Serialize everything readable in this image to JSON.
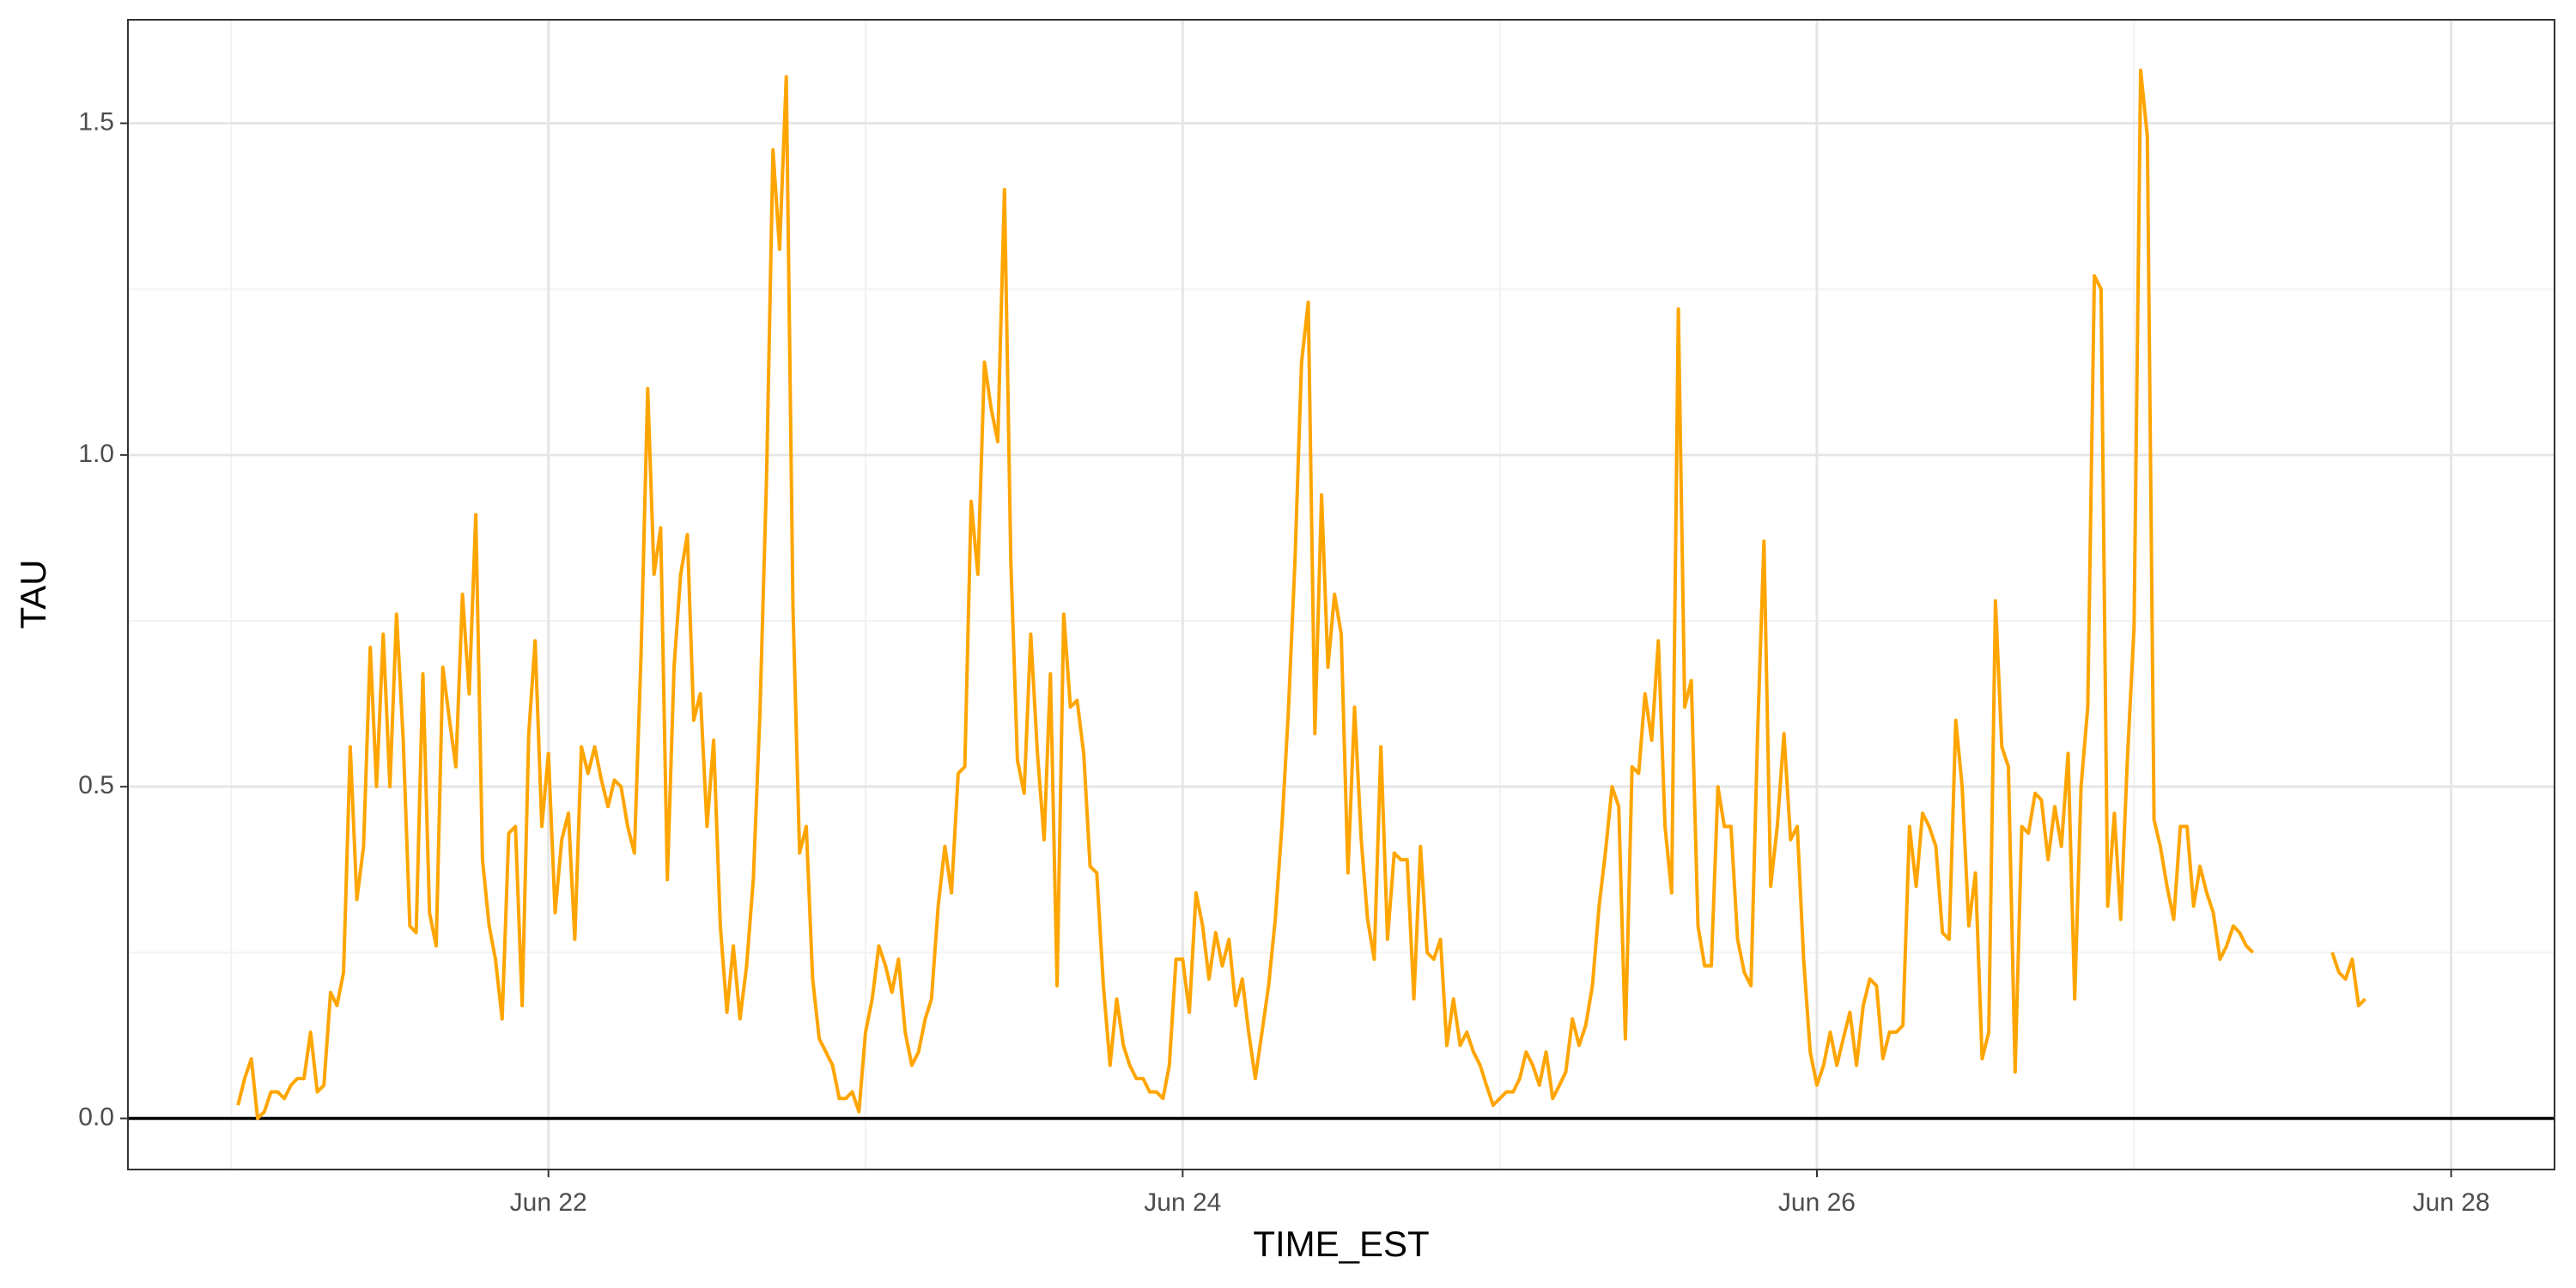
{
  "chart_data": {
    "type": "line",
    "xlabel": "TIME_EST",
    "ylabel": "TAU",
    "color": "#FFA500",
    "grid": true,
    "hline": 0,
    "xlim": [
      20.674,
      28.326
    ],
    "ylim": [
      -0.077,
      1.656
    ],
    "xticks": [
      {
        "value": 22,
        "label": "Jun 22"
      },
      {
        "value": 24,
        "label": "Jun 24"
      },
      {
        "value": 26,
        "label": "Jun 26"
      },
      {
        "value": 28,
        "label": "Jun 28"
      }
    ],
    "minor_xticks": [
      21,
      23,
      25,
      27
    ],
    "yticks": [
      {
        "value": 0,
        "label": "0.0"
      },
      0.5,
      {
        "value": 1,
        "label": "1.0"
      },
      1.5
    ],
    "minor_yticks": [
      0.25,
      0.75,
      1.25
    ],
    "x": [
      21.021,
      21.042,
      21.063,
      21.083,
      21.104,
      21.125,
      21.146,
      21.167,
      21.188,
      21.208,
      21.229,
      21.25,
      21.271,
      21.292,
      21.313,
      21.333,
      21.354,
      21.375,
      21.396,
      21.417,
      21.438,
      21.458,
      21.479,
      21.5,
      21.521,
      21.542,
      21.563,
      21.583,
      21.604,
      21.625,
      21.646,
      21.667,
      21.688,
      21.708,
      21.729,
      21.75,
      21.771,
      21.792,
      21.813,
      21.833,
      21.854,
      21.875,
      21.896,
      21.917,
      21.938,
      21.958,
      21.979,
      22.0,
      22.021,
      22.042,
      22.063,
      22.083,
      22.104,
      22.125,
      22.146,
      22.167,
      22.188,
      22.208,
      22.229,
      22.25,
      22.271,
      22.292,
      22.313,
      22.333,
      22.354,
      22.375,
      22.396,
      22.417,
      22.438,
      22.458,
      22.479,
      22.5,
      22.521,
      22.542,
      22.563,
      22.583,
      22.604,
      22.625,
      22.646,
      22.667,
      22.688,
      22.708,
      22.729,
      22.75,
      22.771,
      22.792,
      22.813,
      22.833,
      22.854,
      22.875,
      22.896,
      22.917,
      22.938,
      22.958,
      22.979,
      23.0,
      23.021,
      23.042,
      23.063,
      23.083,
      23.104,
      23.125,
      23.146,
      23.167,
      23.188,
      23.208,
      23.229,
      23.25,
      23.271,
      23.292,
      23.313,
      23.333,
      23.354,
      23.375,
      23.396,
      23.417,
      23.438,
      23.458,
      23.479,
      23.5,
      23.521,
      23.542,
      23.563,
      23.583,
      23.604,
      23.625,
      23.646,
      23.667,
      23.688,
      23.708,
      23.729,
      23.75,
      23.771,
      23.792,
      23.813,
      23.833,
      23.854,
      23.875,
      23.896,
      23.917,
      23.938,
      23.958,
      23.979,
      24.0,
      24.021,
      24.042,
      24.063,
      24.083,
      24.104,
      24.125,
      24.146,
      24.167,
      24.188,
      24.208,
      24.229,
      24.25,
      24.271,
      24.292,
      24.313,
      24.333,
      24.354,
      24.375,
      24.396,
      24.417,
      24.438,
      24.458,
      24.479,
      24.5,
      24.521,
      24.542,
      24.563,
      24.583,
      24.604,
      24.625,
      24.646,
      24.667,
      24.688,
      24.708,
      24.729,
      24.75,
      24.771,
      24.792,
      24.813,
      24.833,
      24.854,
      24.875,
      24.896,
      24.917,
      24.938,
      24.958,
      24.979,
      25.0,
      25.021,
      25.042,
      25.063,
      25.083,
      25.104,
      25.125,
      25.146,
      25.167,
      25.188,
      25.208,
      25.229,
      25.25,
      25.271,
      25.292,
      25.313,
      25.333,
      25.354,
      25.375,
      25.396,
      25.417,
      25.438,
      25.458,
      25.479,
      25.5,
      25.521,
      25.542,
      25.563,
      25.583,
      25.604,
      25.625,
      25.646,
      25.667,
      25.688,
      25.708,
      25.729,
      25.75,
      25.771,
      25.792,
      25.813,
      25.833,
      25.854,
      25.875,
      25.896,
      25.917,
      25.938,
      25.958,
      25.979,
      26.0,
      26.021,
      26.042,
      26.063,
      26.083,
      26.104,
      26.125,
      26.146,
      26.167,
      26.188,
      26.208,
      26.229,
      26.25,
      26.271,
      26.292,
      26.313,
      26.333,
      26.354,
      26.375,
      26.396,
      26.417,
      26.438,
      26.458,
      26.479,
      26.5,
      26.521,
      26.542,
      26.563,
      26.583,
      26.604,
      26.625,
      26.646,
      26.667,
      26.688,
      26.708,
      26.729,
      26.75,
      26.771,
      26.792,
      26.813,
      26.833,
      26.854,
      26.875,
      26.896,
      26.917,
      26.938,
      26.958,
      26.979,
      27.0,
      27.021,
      27.042,
      27.063,
      27.083,
      27.104,
      27.125,
      27.146,
      27.167,
      27.188,
      27.208,
      27.229,
      27.25,
      27.271,
      27.292,
      27.313,
      27.333,
      27.354,
      27.375,
      27.5,
      27.625,
      27.646,
      27.667,
      27.688,
      27.708,
      27.729
    ],
    "values": [
      0.02,
      0.06,
      0.09,
      0.0,
      0.01,
      0.04,
      0.04,
      0.03,
      0.05,
      0.06,
      0.06,
      0.13,
      0.04,
      0.05,
      0.19,
      0.17,
      0.22,
      0.56,
      0.33,
      0.41,
      0.71,
      0.5,
      0.73,
      0.5,
      0.76,
      0.57,
      0.29,
      0.28,
      0.67,
      0.31,
      0.26,
      0.68,
      0.6,
      0.53,
      0.79,
      0.64,
      0.91,
      0.39,
      0.29,
      0.24,
      0.15,
      0.43,
      0.44,
      0.17,
      0.58,
      0.72,
      0.44,
      0.55,
      0.31,
      0.42,
      0.46,
      0.27,
      0.56,
      0.52,
      0.56,
      0.51,
      0.47,
      0.51,
      0.5,
      0.44,
      0.4,
      0.7,
      1.1,
      0.82,
      0.89,
      0.36,
      0.68,
      0.82,
      0.88,
      0.6,
      0.64,
      0.44,
      0.57,
      0.29,
      0.16,
      0.26,
      0.15,
      0.23,
      0.36,
      0.61,
      0.97,
      1.46,
      1.31,
      1.57,
      0.77,
      0.4,
      0.44,
      0.21,
      0.12,
      0.1,
      0.08,
      0.03,
      0.03,
      0.04,
      0.01,
      0.13,
      0.18,
      0.26,
      0.23,
      0.19,
      0.24,
      0.13,
      0.08,
      0.1,
      0.15,
      0.18,
      0.32,
      0.41,
      0.34,
      0.52,
      0.53,
      0.93,
      0.82,
      1.14,
      1.07,
      1.02,
      1.4,
      0.84,
      0.54,
      0.49,
      0.73,
      0.55,
      0.42,
      0.67,
      0.2,
      0.76,
      0.62,
      0.63,
      0.55,
      0.38,
      0.37,
      0.2,
      0.08,
      0.18,
      0.11,
      0.08,
      0.06,
      0.06,
      0.04,
      0.04,
      0.03,
      0.08,
      0.24,
      0.24,
      0.16,
      0.34,
      0.29,
      0.21,
      0.28,
      0.23,
      0.27,
      0.17,
      0.21,
      0.13,
      0.06,
      0.13,
      0.2,
      0.3,
      0.44,
      0.61,
      0.84,
      1.14,
      1.23,
      0.58,
      0.94,
      0.68,
      0.79,
      0.73,
      0.37,
      0.62,
      0.42,
      0.3,
      0.24,
      0.56,
      0.27,
      0.4,
      0.39,
      0.39,
      0.18,
      0.41,
      0.25,
      0.24,
      0.27,
      0.11,
      0.18,
      0.11,
      0.13,
      0.1,
      0.08,
      0.05,
      0.02,
      0.03,
      0.04,
      0.04,
      0.06,
      0.1,
      0.08,
      0.05,
      0.1,
      0.03,
      0.05,
      0.07,
      0.15,
      0.11,
      0.14,
      0.2,
      0.32,
      0.4,
      0.5,
      0.47,
      0.12,
      0.53,
      0.52,
      0.64,
      0.57,
      0.72,
      0.44,
      0.34,
      1.22,
      0.62,
      0.66,
      0.29,
      0.23,
      0.23,
      0.5,
      0.44,
      0.44,
      0.27,
      0.22,
      0.2,
      0.58,
      0.87,
      0.35,
      0.44,
      0.58,
      0.42,
      0.44,
      0.24,
      0.1,
      0.05,
      0.08,
      0.13,
      0.08,
      0.12,
      0.16,
      0.08,
      0.17,
      0.21,
      0.2,
      0.09,
      0.13,
      0.13,
      0.14,
      0.44,
      0.35,
      0.46,
      0.44,
      0.41,
      0.28,
      0.27,
      0.6,
      0.5,
      0.29,
      0.37,
      0.09,
      0.13,
      0.78,
      0.56,
      0.53,
      0.07,
      0.44,
      0.43,
      0.49,
      0.48,
      0.39,
      0.47,
      0.41,
      0.55,
      0.18,
      0.5,
      0.62,
      1.27,
      1.25,
      0.32,
      0.46,
      0.3,
      0.54,
      0.74,
      1.58,
      1.48,
      0.45,
      0.41,
      0.35,
      0.3,
      0.44,
      0.44,
      0.32,
      0.38,
      0.34,
      0.31,
      0.24,
      0.26,
      0.29,
      0.28,
      0.26,
      0.25,
      null,
      0.25,
      0.22,
      0.21,
      0.24,
      0.17,
      0.18
    ]
  }
}
